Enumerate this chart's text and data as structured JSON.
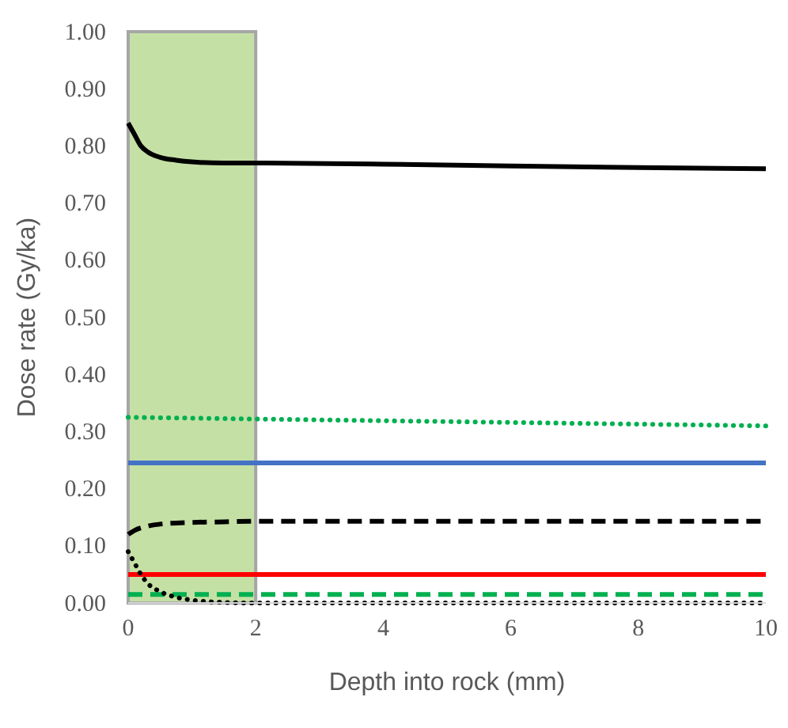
{
  "chart_data": {
    "type": "line",
    "xlabel": "Depth into rock (mm)",
    "ylabel": "Dose rate (Gy/ka)",
    "xlim": [
      0,
      10
    ],
    "xticks": [
      0,
      2,
      4,
      6,
      8,
      10
    ],
    "ylim": [
      0,
      1
    ],
    "yticks": [
      {
        "value": 0,
        "label": "0.00"
      },
      {
        "value": 0.1,
        "label": "0.10"
      },
      {
        "value": 0.2,
        "label": "0.20"
      },
      {
        "value": 0.3,
        "label": "0.30"
      },
      {
        "value": 0.4,
        "label": "0.40"
      },
      {
        "value": 0.5,
        "label": "0.50"
      },
      {
        "value": 0.6,
        "label": "0.60"
      },
      {
        "value": 0.7,
        "label": "0.70"
      },
      {
        "value": 0.8,
        "label": "0.80"
      },
      {
        "value": 0.9,
        "label": "0.90"
      },
      {
        "value": 1,
        "label": "1.00"
      }
    ],
    "grid": false,
    "bands": [
      {
        "axis": "x",
        "from": 0,
        "to": 2,
        "color": "#c5e0a5"
      }
    ],
    "series": [
      {
        "color": "#000000",
        "line_style": "solid",
        "x": [
          0,
          0.1,
          0.2,
          0.3,
          0.5,
          0.75,
          1,
          1.5,
          2,
          4,
          6,
          8,
          10
        ],
        "values": [
          0.84,
          0.82,
          0.8,
          0.79,
          0.78,
          0.775,
          0.772,
          0.77,
          0.77,
          0.768,
          0.765,
          0.762,
          0.76
        ]
      },
      {
        "color": "#00b050",
        "line_style": "dotted",
        "x": [
          0,
          2,
          10
        ],
        "values": [
          0.325,
          0.322,
          0.31
        ]
      },
      {
        "color": "#4472c4",
        "line_style": "solid",
        "x": [
          0,
          2,
          10
        ],
        "values": [
          0.245,
          0.245,
          0.245
        ]
      },
      {
        "color": "#000000",
        "line_style": "dashed",
        "x": [
          0,
          0.1,
          0.25,
          0.5,
          1,
          1.5,
          2,
          10
        ],
        "values": [
          0.12,
          0.127,
          0.133,
          0.138,
          0.141,
          0.142,
          0.143,
          0.143
        ]
      },
      {
        "color": "#ff0000",
        "line_style": "solid",
        "x": [
          0,
          2,
          10
        ],
        "values": [
          0.05,
          0.05,
          0.05
        ]
      },
      {
        "color": "#00b050",
        "line_style": "dashed",
        "x": [
          0,
          2,
          10
        ],
        "values": [
          0.015,
          0.015,
          0.015
        ]
      },
      {
        "color": "#000000",
        "line_style": "dotted",
        "x": [
          0,
          0.1,
          0.2,
          0.3,
          0.5,
          0.75,
          1,
          1.5,
          2,
          10
        ],
        "values": [
          0.09,
          0.07,
          0.05,
          0.035,
          0.02,
          0.01,
          0.005,
          0.001,
          0,
          0
        ]
      }
    ]
  }
}
